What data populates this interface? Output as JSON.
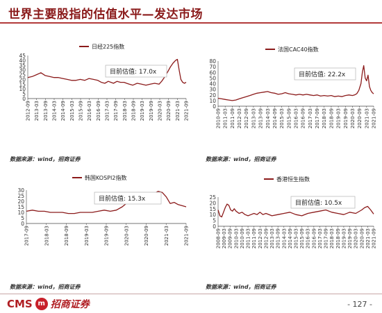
{
  "page": {
    "title": "世界主要股指的估值水平—发达市场",
    "source_label": "数据来源：wind，招商证券",
    "page_number": "- 127 -",
    "logo_latin": "CMS",
    "logo_badge": "m",
    "logo_cn": "招商证券"
  },
  "colors": {
    "series": "#8b1a1a",
    "title": "#8a1a1a",
    "box": "#bbbbbb"
  },
  "chart_data": [
    {
      "type": "line",
      "legend": "日经225指数",
      "annotation": "目前估值:   17.0x",
      "ylim": [
        0,
        45
      ],
      "yticks": [
        0,
        5,
        10,
        15,
        20,
        25,
        30,
        35,
        40,
        45
      ],
      "xticks": [
        "2012-09",
        "2013-03",
        "2013-09",
        "2014-03",
        "2014-09",
        "2015-03",
        "2015-09",
        "2016-03",
        "2016-09",
        "2017-03",
        "2017-09",
        "2018-03",
        "2018-09",
        "2019-03",
        "2019-09",
        "2020-03",
        "2020-09",
        "2021-03",
        "2021-09"
      ],
      "x": [
        0,
        0.5,
        1,
        1.5,
        2,
        2.5,
        3,
        3.5,
        4,
        4.5,
        5,
        5.5,
        6,
        6.5,
        7,
        7.5,
        8,
        8.4,
        8.8,
        9.2,
        9.5,
        9.8,
        10.2,
        10.6,
        11.0,
        11.3,
        11.6,
        12,
        12.5,
        13,
        13.5,
        14,
        14.5,
        15,
        15.3,
        15.6,
        16,
        16.3,
        16.6,
        16.9,
        17.1,
        17.3,
        17.5,
        17.7,
        17.9,
        18.1
      ],
      "values": [
        22,
        23,
        25,
        27,
        24,
        23,
        22,
        22,
        21,
        20,
        19,
        19,
        20,
        19,
        21,
        20,
        19,
        17,
        16,
        18,
        17,
        16,
        18,
        17,
        17,
        16,
        15,
        14,
        16,
        15,
        14,
        15,
        16,
        15,
        18,
        22,
        28,
        33,
        37,
        40,
        41,
        30,
        20,
        17,
        16,
        17
      ]
    },
    {
      "type": "line",
      "legend": "法国CAC40指数",
      "annotation": "目前估值:   22.2x",
      "ylim": [
        0,
        80
      ],
      "yticks": [
        0,
        10,
        20,
        30,
        40,
        50,
        60,
        70,
        80
      ],
      "xticks": [
        "2010-09",
        "2011-03",
        "2011-09",
        "2012-03",
        "2012-09",
        "2013-03",
        "2013-09",
        "2014-03",
        "2014-09",
        "2015-03",
        "2015-09",
        "2016-03",
        "2016-09",
        "2017-03",
        "2017-09",
        "2018-03",
        "2018-09",
        "2019-03",
        "2019-09",
        "2020-03",
        "2020-09",
        "2021-03",
        "2021-09"
      ],
      "x": [
        0,
        0.5,
        1,
        1.5,
        2,
        2.5,
        3,
        3.5,
        4,
        4.5,
        5,
        5.5,
        6,
        6.5,
        7,
        7.5,
        8,
        8.5,
        9,
        9.5,
        10,
        10.5,
        11,
        11.5,
        12,
        12.5,
        13,
        13.5,
        14,
        14.5,
        15,
        15.5,
        16,
        16.5,
        17,
        17.5,
        18,
        18.5,
        19,
        19.3,
        19.6,
        19.9,
        20.2,
        20.4,
        20.6,
        20.8,
        21.0,
        21.2,
        21.4,
        21.6,
        21.8,
        22
      ],
      "values": [
        14,
        13,
        12,
        11,
        10,
        11,
        13,
        15,
        17,
        19,
        21,
        23,
        24,
        25,
        26,
        24,
        23,
        21,
        22,
        24,
        22,
        21,
        20,
        21,
        20,
        21,
        20,
        19,
        20,
        18,
        19,
        18,
        19,
        17,
        18,
        17,
        19,
        20,
        19,
        20,
        22,
        28,
        40,
        60,
        72,
        50,
        45,
        55,
        35,
        28,
        24,
        22
      ]
    },
    {
      "type": "line",
      "legend": "韩国KOSPI2指数",
      "annotation": "目前估值:   15.3x",
      "ylim": [
        0,
        30
      ],
      "yticks": [
        0,
        5,
        10,
        15,
        20,
        25,
        30
      ],
      "xticks": [
        "2017-09",
        "2018-03",
        "2018-09",
        "2019-03",
        "2019-09",
        "2020-03",
        "2020-09",
        "2021-03",
        "2021-09"
      ],
      "x": [
        0,
        0.3,
        0.6,
        0.9,
        1.2,
        1.5,
        1.8,
        2.1,
        2.4,
        2.7,
        3.0,
        3.3,
        3.6,
        3.9,
        4.2,
        4.5,
        4.8,
        5.0,
        5.2,
        5.4,
        5.6,
        5.8,
        6.0,
        6.2,
        6.4,
        6.6,
        6.8,
        7.0,
        7.2,
        7.4,
        7.6,
        7.8,
        8.0
      ],
      "values": [
        11,
        12,
        11,
        11,
        10,
        10,
        10,
        9,
        9,
        10,
        10,
        10,
        11,
        12,
        11,
        12,
        15,
        18,
        20,
        21,
        23,
        24,
        26,
        25,
        27,
        29,
        28,
        24,
        18,
        19,
        17,
        16,
        15
      ]
    },
    {
      "type": "line",
      "legend": "香港恒生指数",
      "annotation": "目前估值:   10.5x",
      "ylim": [
        0,
        25
      ],
      "yticks": [
        0,
        5,
        10,
        15,
        20,
        25
      ],
      "xticks": [
        "2008-09",
        "2009-03",
        "2009-09",
        "2010-03",
        "2010-09",
        "2011-03",
        "2011-09",
        "2012-03",
        "2012-09",
        "2013-03",
        "2013-09",
        "2014-03",
        "2014-09",
        "2015-03",
        "2015-09",
        "2016-03",
        "2016-09",
        "2017-03",
        "2017-09",
        "2018-03",
        "2018-09",
        "2019-03",
        "2019-09",
        "2020-03",
        "2020-09",
        "2021-03",
        "2021-09"
      ],
      "x": [
        0,
        0.3,
        0.6,
        0.9,
        1.2,
        1.5,
        1.8,
        2.1,
        2.4,
        2.7,
        3.0,
        3.5,
        4.0,
        4.5,
        5.0,
        5.5,
        6.0,
        6.5,
        7.0,
        7.5,
        8.0,
        9.0,
        10.0,
        11.0,
        12.0,
        13.0,
        14.0,
        15.0,
        16.0,
        17.0,
        18.0,
        19.0,
        20.0,
        21.0,
        22.0,
        23.0,
        24.0,
        24.5,
        25.0,
        25.5,
        26.0
      ],
      "values": [
        14,
        9,
        8,
        12,
        16,
        19,
        18,
        14,
        13,
        15,
        13,
        11,
        12,
        10,
        9,
        10,
        11,
        10,
        12,
        10,
        11,
        9,
        10,
        11,
        12,
        10,
        9,
        11,
        12,
        13,
        14,
        12,
        11,
        10,
        12,
        11,
        14,
        16,
        17,
        14,
        10.5
      ]
    }
  ]
}
